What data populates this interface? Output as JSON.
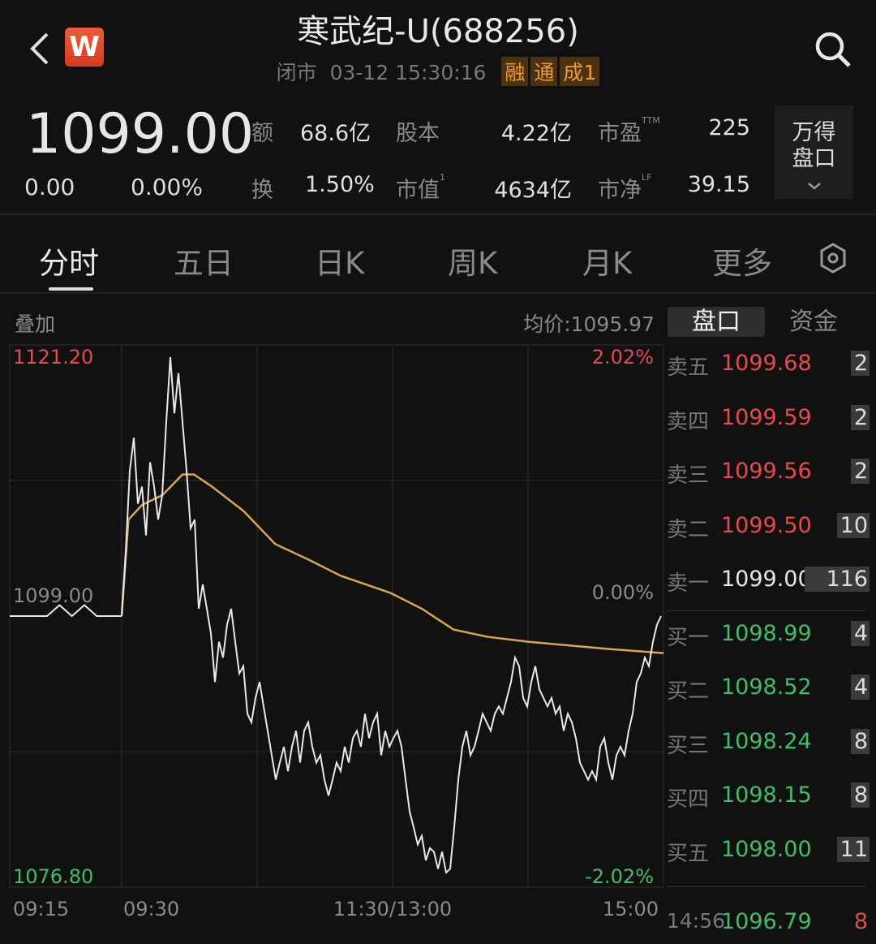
{
  "header": {
    "title": "寒武纪-U(688256)",
    "status": "闭市",
    "datetime": "03-12 15:30:16",
    "tags": [
      "融",
      "通",
      "成1"
    ],
    "logo": "W",
    "back_icon": "chevron-left-icon",
    "search_icon": "search-icon"
  },
  "quote": {
    "price": "1099.00",
    "change": "0.00",
    "change_pct": "0.00%",
    "stats": [
      {
        "label": "额",
        "value": "68.6亿",
        "sup": ""
      },
      {
        "label": "股本",
        "value": "4.22亿",
        "sup": ""
      },
      {
        "label": "市盈",
        "value": "225",
        "sup": "TTM"
      },
      {
        "label": "换",
        "value": "1.50%",
        "sup": ""
      },
      {
        "label": "市值",
        "value": "4634亿",
        "sup": "1"
      },
      {
        "label": "市净",
        "value": "39.15",
        "sup": "LF"
      }
    ],
    "wind_button": [
      "万得",
      "盘口"
    ]
  },
  "tabs": [
    "分时",
    "五日",
    "日K",
    "周K",
    "月K",
    "更多"
  ],
  "active_tab": "分时",
  "chart": {
    "overlay_label": "叠加",
    "avg_label": "均价:1095.97",
    "y_max": "1121.20",
    "y_min": "1076.80",
    "y_mid": "1099.00",
    "pct_max": "2.02%",
    "pct_mid": "0.00%",
    "pct_min": "-2.02%",
    "x_labels": [
      "09:15",
      "09:30",
      "11:30/13:00",
      "15:00"
    ],
    "colors": {
      "price": "#e8e8e8",
      "avg": "#d6a84a",
      "up": "#e8494a",
      "down": "#3fbf65"
    }
  },
  "chart_data": {
    "type": "line",
    "ylim": [
      1076.8,
      1121.2
    ],
    "prev_close": 1099.0,
    "premarket": [
      1099.0,
      1099.0,
      1099.0,
      1099.0,
      1099.9,
      1099.0,
      1099.9,
      1099.0,
      1099.0,
      1099.0
    ],
    "price": [
      1099.0,
      1104.3,
      1110.9,
      1113.6,
      1108.2,
      1109.6,
      1105.6,
      1111.6,
      1109.6,
      1106.9,
      1108.9,
      1114.9,
      1120.2,
      1115.6,
      1118.9,
      1114.9,
      1110.9,
      1106.2,
      1106.9,
      1099.6,
      1101.6,
      1099.6,
      1097.6,
      1093.6,
      1096.9,
      1095.6,
      1098.3,
      1099.6,
      1096.9,
      1094.3,
      1094.9,
      1091.0,
      1090.3,
      1092.3,
      1093.6,
      1091.6,
      1089.6,
      1087.6,
      1085.6,
      1087.0,
      1088.3,
      1086.3,
      1088.3,
      1089.6,
      1087.0,
      1089.6,
      1090.3,
      1088.3,
      1087.0,
      1087.6,
      1085.6,
      1084.3,
      1085.6,
      1087.0,
      1086.3,
      1088.3,
      1087.0,
      1089.0,
      1089.6,
      1088.3,
      1091.0,
      1089.0,
      1090.3,
      1091.0,
      1087.6,
      1089.6,
      1088.3,
      1089.0,
      1089.6,
      1088.3,
      1085.6,
      1083.0,
      1081.7,
      1080.3,
      1081.0,
      1079.0,
      1080.0,
      1079.7,
      1078.3,
      1079.7,
      1078.0,
      1078.3,
      1081.7,
      1085.6,
      1088.3,
      1089.6,
      1087.6,
      1088.3,
      1089.6,
      1091.0,
      1090.3,
      1089.6,
      1091.0,
      1091.6,
      1091.0,
      1092.3,
      1093.6,
      1095.6,
      1094.9,
      1092.3,
      1091.6,
      1093.6,
      1094.9,
      1093.0,
      1092.3,
      1091.6,
      1092.3,
      1091.0,
      1091.6,
      1089.6,
      1091.0,
      1090.3,
      1089.0,
      1087.0,
      1086.3,
      1085.6,
      1086.3,
      1085.6,
      1088.3,
      1089.0,
      1087.0,
      1085.6,
      1087.6,
      1088.3,
      1087.6,
      1089.6,
      1091.0,
      1093.6,
      1094.3,
      1095.6,
      1094.9,
      1096.9,
      1098.3,
      1099.0
    ],
    "avg": [
      [
        "09:30",
        1099.0
      ],
      [
        "09:33",
        1106.9
      ],
      [
        "09:39",
        1108.1
      ],
      [
        "09:48",
        1108.9
      ],
      [
        "09:57",
        1110.6
      ],
      [
        "10:02",
        1110.6
      ],
      [
        "10:10",
        1109.6
      ],
      [
        "10:24",
        1107.6
      ],
      [
        "10:38",
        1104.9
      ],
      [
        "10:53",
        1103.6
      ],
      [
        "11:07",
        1102.3
      ],
      [
        "11:29",
        1100.9
      ],
      [
        "13:13",
        1099.6
      ],
      [
        "13:27",
        1097.9
      ],
      [
        "13:42",
        1097.3
      ],
      [
        "14:00",
        1096.9
      ],
      [
        "14:18",
        1096.6
      ],
      [
        "14:36",
        1096.3
      ],
      [
        "15:00",
        1095.97
      ]
    ]
  },
  "panel": {
    "tabs": [
      "盘口",
      "资金"
    ],
    "active": "盘口",
    "asks": [
      {
        "label": "卖五",
        "price": "1099.68",
        "vol": "2"
      },
      {
        "label": "卖四",
        "price": "1099.59",
        "vol": "2"
      },
      {
        "label": "卖三",
        "price": "1099.56",
        "vol": "2"
      },
      {
        "label": "卖二",
        "price": "1099.50",
        "vol": "10"
      },
      {
        "label": "卖一",
        "price": "1099.00",
        "vol": "116"
      }
    ],
    "bids": [
      {
        "label": "买一",
        "price": "1098.99",
        "vol": "4"
      },
      {
        "label": "买二",
        "price": "1098.52",
        "vol": "4"
      },
      {
        "label": "买三",
        "price": "1098.24",
        "vol": "8"
      },
      {
        "label": "买四",
        "price": "1098.15",
        "vol": "8"
      },
      {
        "label": "买五",
        "price": "1098.00",
        "vol": "11"
      }
    ],
    "trade": {
      "time": "14:56",
      "price": "1096.79",
      "vol": "8"
    }
  }
}
